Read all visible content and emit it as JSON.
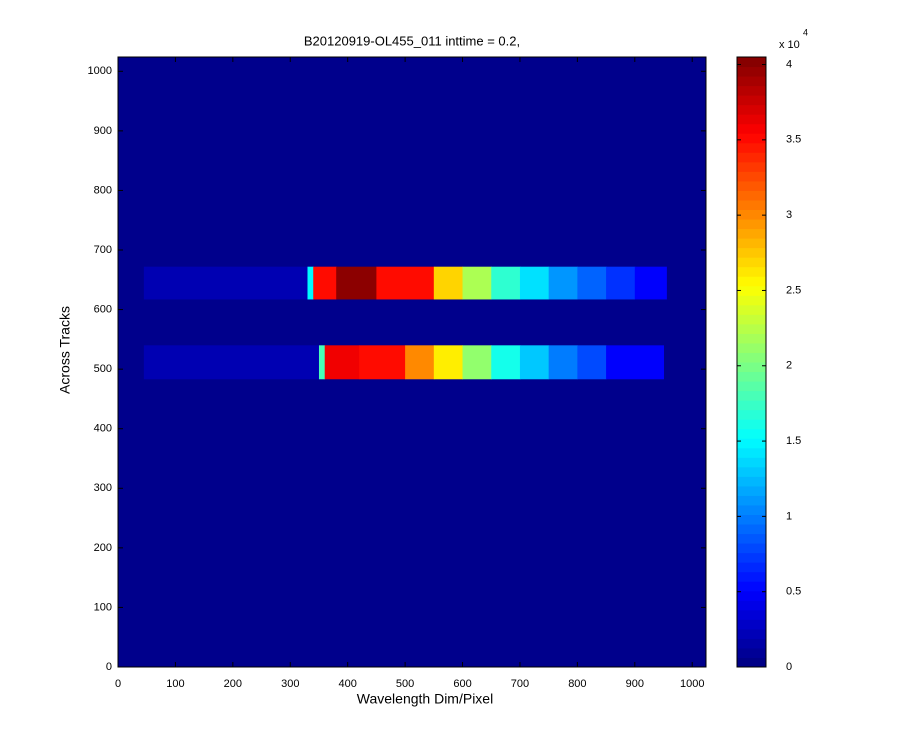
{
  "chart_data": {
    "type": "heatmap",
    "title": "B20120919-OL455_011 inttime = 0.2,",
    "x_label": "Wavelength Dim/Pixel",
    "y_label": "Across Tracks",
    "xlim": [
      0,
      1024
    ],
    "ylim": [
      0,
      1024
    ],
    "xticks": [
      0,
      100,
      200,
      300,
      400,
      500,
      600,
      700,
      800,
      900,
      1000
    ],
    "yticks": [
      0,
      100,
      200,
      300,
      400,
      500,
      600,
      700,
      800,
      900,
      1000
    ],
    "colormap": "jet",
    "background_value": 0.05,
    "rows": [
      {
        "y": [
          617,
          672
        ],
        "x_bins": [
          45,
          330,
          340,
          380,
          450,
          550,
          600,
          650,
          700,
          750,
          800,
          850,
          900,
          955
        ],
        "values": [
          0.2,
          1.5,
          3.5,
          4.0,
          3.5,
          2.7,
          2.2,
          1.7,
          1.4,
          1.1,
          0.9,
          0.7,
          0.5
        ]
      },
      {
        "y": [
          483,
          540
        ],
        "x_bins": [
          45,
          350,
          360,
          420,
          500,
          550,
          600,
          650,
          700,
          750,
          800,
          850,
          950
        ],
        "values": [
          0.2,
          1.8,
          3.6,
          3.5,
          3.0,
          2.6,
          2.1,
          1.6,
          1.3,
          1.0,
          0.8,
          0.5
        ]
      }
    ],
    "colorbar": {
      "lim": [
        0,
        4.05
      ],
      "ticks": [
        0,
        0.5,
        1,
        1.5,
        2,
        2.5,
        3,
        3.5,
        4
      ],
      "multiplier_label": "x 10",
      "multiplier_exponent": "4"
    }
  }
}
